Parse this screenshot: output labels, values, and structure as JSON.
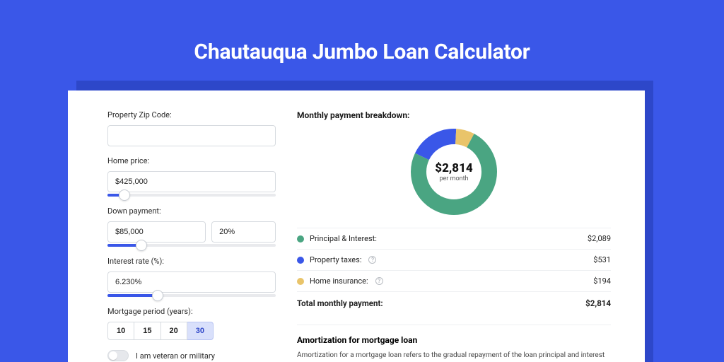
{
  "page": {
    "title": "Chautauqua Jumbo Loan Calculator",
    "bg_color": "#3a57e8",
    "card_shadow_color": "#2d47c9"
  },
  "form": {
    "zip": {
      "label": "Property Zip Code:",
      "value": ""
    },
    "home_price": {
      "label": "Home price:",
      "value": "$425,000",
      "slider_pct": 10
    },
    "down_payment": {
      "label": "Down payment:",
      "amount": "$85,000",
      "percent": "20%",
      "slider_pct": 20
    },
    "interest_rate": {
      "label": "Interest rate (%):",
      "value": "6.230%",
      "slider_pct": 30
    },
    "mortgage_period": {
      "label": "Mortgage period (years):",
      "options": [
        "10",
        "15",
        "20",
        "30"
      ],
      "selected": "30"
    },
    "veteran": {
      "label": "I am veteran or military",
      "checked": false
    }
  },
  "breakdown": {
    "title": "Monthly payment breakdown:",
    "center_amount": "$2,814",
    "center_sub": "per month",
    "items": [
      {
        "label": "Principal & Interest:",
        "value": "$2,089",
        "color": "#4aa582",
        "info": false,
        "raw": 2089
      },
      {
        "label": "Property taxes:",
        "value": "$531",
        "color": "#3a57e8",
        "info": true,
        "raw": 531
      },
      {
        "label": "Home insurance:",
        "value": "$194",
        "color": "#e9c46a",
        "info": true,
        "raw": 194
      }
    ],
    "total_label": "Total monthly payment:",
    "total_value": "$2,814",
    "donut": {
      "radius": 50,
      "stroke": 22,
      "bg": "#ffffff"
    }
  },
  "amortization": {
    "title": "Amortization for mortgage loan",
    "text": "Amortization for a mortgage loan refers to the gradual repayment of the loan principal and interest over a specified"
  }
}
